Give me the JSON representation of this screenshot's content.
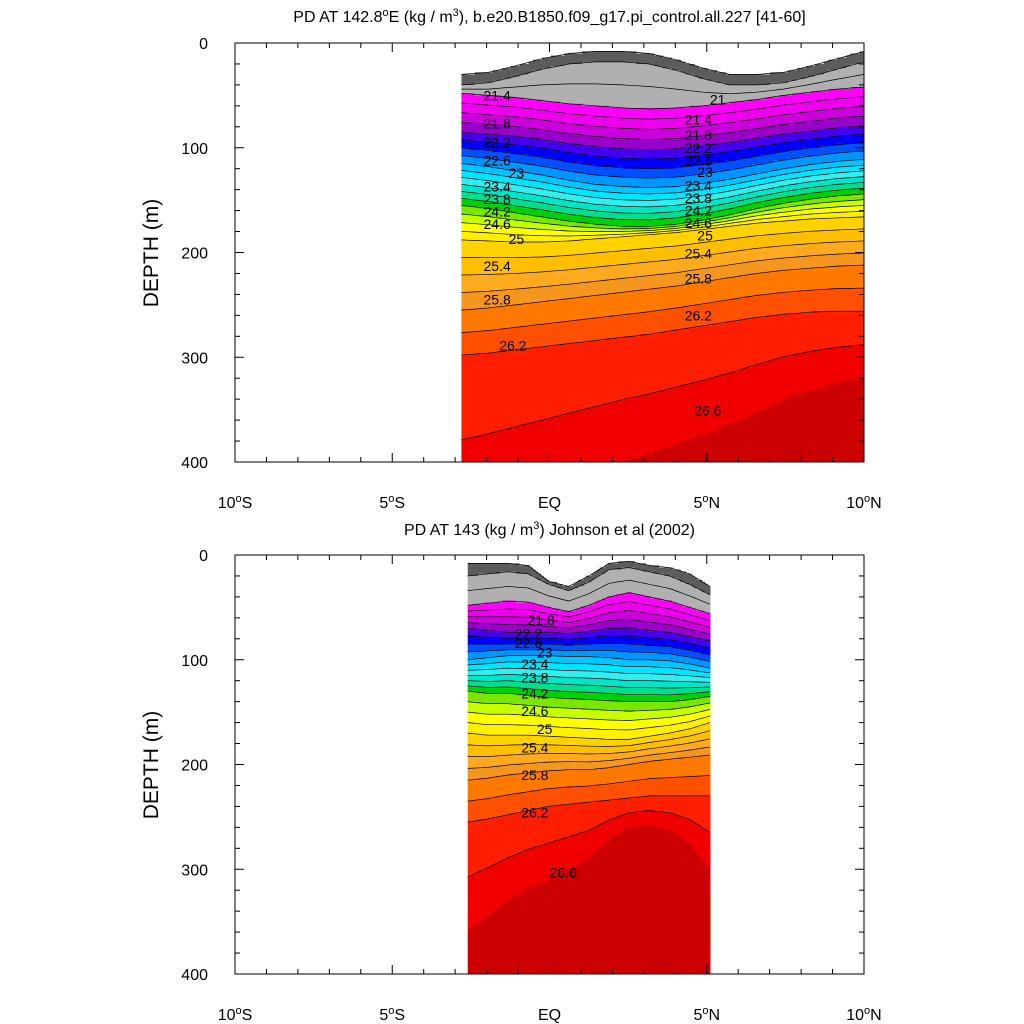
{
  "chart_data": [
    {
      "type": "contour",
      "title_prefix": "PD AT 142.8",
      "title_mid": "E (kg / m",
      "title_suffix": "), b.e20.B1850.f09_g17.pi_control.all.227 [41-60]",
      "degree_sup": "o",
      "cube_sup": "3",
      "ylabel": "DEPTH (m)",
      "xlabel": "",
      "xlim": [
        -10,
        10
      ],
      "ylim": [
        400,
        0
      ],
      "x_ticks": [
        {
          "value": -10,
          "num": "10",
          "hemi": "S"
        },
        {
          "value": -5,
          "num": "5",
          "hemi": "S"
        },
        {
          "value": 0,
          "num": "EQ",
          "hemi": ""
        },
        {
          "value": 5,
          "num": "5",
          "hemi": "N"
        },
        {
          "value": 10,
          "num": "10",
          "hemi": "N"
        }
      ],
      "y_ticks": [
        0,
        100,
        200,
        300,
        400
      ],
      "data_extent_x": [
        -2.8,
        10
      ],
      "contour_interval": 0.2,
      "top_depth": [
        30,
        28,
        22,
        15,
        10,
        8,
        8,
        10,
        16,
        24,
        30,
        30,
        28,
        22,
        15,
        8
      ],
      "iso_depth": [
        {
          "level": 21.0,
          "depth": [
            40,
            38,
            32,
            25,
            20,
            18,
            18,
            20,
            26,
            34,
            40,
            40,
            38,
            32,
            25,
            18
          ]
        },
        {
          "level": 21.4,
          "depth": [
            48,
            50,
            52,
            55,
            58,
            60,
            62,
            63,
            62,
            60,
            57,
            54,
            50,
            47,
            44,
            42
          ]
        },
        {
          "level": 22.2,
          "depth": [
            85,
            87,
            89,
            92,
            96,
            99,
            101,
            102,
            101,
            98,
            95,
            91,
            87,
            84,
            81,
            79
          ]
        },
        {
          "level": 23.0,
          "depth": [
            115,
            118,
            122,
            126,
            131,
            135,
            137,
            138,
            137,
            134,
            130,
            125,
            120,
            116,
            113,
            111
          ]
        },
        {
          "level": 24.2,
          "depth": [
            155,
            158,
            162,
            166,
            170,
            173,
            175,
            175,
            173,
            169,
            164,
            158,
            153,
            149,
            146,
            144
          ]
        },
        {
          "level": 25.0,
          "depth": [
            188,
            189,
            190,
            190,
            189,
            187,
            185,
            183,
            181,
            178,
            175,
            172,
            170,
            168,
            167,
            166
          ]
        },
        {
          "level": 25.8,
          "depth": [
            255,
            253,
            250,
            247,
            244,
            241,
            238,
            235,
            232,
            228,
            224,
            220,
            217,
            215,
            213,
            212
          ]
        },
        {
          "level": 26.2,
          "depth": [
            298,
            296,
            293,
            290,
            287,
            284,
            281,
            278,
            274,
            270,
            266,
            262,
            259,
            257,
            256,
            256
          ]
        },
        {
          "level": 26.6,
          "depth": [
            460,
            450,
            440,
            430,
            420,
            410,
            400,
            392,
            383,
            374,
            364,
            352,
            340,
            332,
            325,
            320
          ]
        }
      ],
      "labels": [
        {
          "text": "21",
          "x": 5.1,
          "y": 54
        },
        {
          "text": "21.4",
          "x": -2.1,
          "y": 50
        },
        {
          "text": "21.4",
          "x": 4.3,
          "y": 73
        },
        {
          "text": "21.8",
          "x": -2.1,
          "y": 77
        },
        {
          "text": "21.8",
          "x": 4.3,
          "y": 88
        },
        {
          "text": "22.2",
          "x": -2.1,
          "y": 95
        },
        {
          "text": "22.2",
          "x": 4.3,
          "y": 100
        },
        {
          "text": "22.6",
          "x": -2.1,
          "y": 112
        },
        {
          "text": "22.6",
          "x": 4.3,
          "y": 112
        },
        {
          "text": "23",
          "x": -1.3,
          "y": 124
        },
        {
          "text": "23",
          "x": 4.7,
          "y": 123
        },
        {
          "text": "23.4",
          "x": -2.1,
          "y": 137
        },
        {
          "text": "23.4",
          "x": 4.3,
          "y": 136
        },
        {
          "text": "23.8",
          "x": -2.1,
          "y": 149
        },
        {
          "text": "23.8",
          "x": 4.3,
          "y": 148
        },
        {
          "text": "24.2",
          "x": -2.1,
          "y": 161
        },
        {
          "text": "24.2",
          "x": 4.3,
          "y": 160
        },
        {
          "text": "24.6",
          "x": -2.1,
          "y": 173
        },
        {
          "text": "24.6",
          "x": 4.3,
          "y": 172
        },
        {
          "text": "25",
          "x": -1.3,
          "y": 187
        },
        {
          "text": "25",
          "x": 4.7,
          "y": 184
        },
        {
          "text": "25.4",
          "x": -2.1,
          "y": 213
        },
        {
          "text": "25.4",
          "x": 4.3,
          "y": 201
        },
        {
          "text": "25.8",
          "x": -2.1,
          "y": 245
        },
        {
          "text": "25.8",
          "x": 4.3,
          "y": 225
        },
        {
          "text": "26.2",
          "x": -1.6,
          "y": 289
        },
        {
          "text": "26.2",
          "x": 4.3,
          "y": 260
        },
        {
          "text": "26.6",
          "x": 4.6,
          "y": 351
        }
      ]
    },
    {
      "type": "contour",
      "title_prefix": "PD AT 143 (kg / m",
      "title_mid": "",
      "title_suffix": ") Johnson et al (2002)",
      "degree_sup": "",
      "cube_sup": "3",
      "ylabel": "DEPTH (m)",
      "xlabel": "",
      "xlim": [
        -10,
        10
      ],
      "ylim": [
        400,
        0
      ],
      "x_ticks": [
        {
          "value": -10,
          "num": "10",
          "hemi": "S"
        },
        {
          "value": -5,
          "num": "5",
          "hemi": "S"
        },
        {
          "value": 0,
          "num": "EQ",
          "hemi": ""
        },
        {
          "value": 5,
          "num": "5",
          "hemi": "N"
        },
        {
          "value": 10,
          "num": "10",
          "hemi": "N"
        }
      ],
      "y_ticks": [
        0,
        100,
        200,
        300,
        400
      ],
      "data_extent_x": [
        -2.6,
        5.1
      ],
      "data_top_depth": 6,
      "contour_interval": 0.2,
      "top_depth": [
        8,
        8,
        8,
        10,
        25,
        30,
        20,
        8,
        6,
        10,
        12,
        18,
        30
      ],
      "iso_depth": [
        {
          "level": 21.0,
          "depth": [
            20,
            18,
            16,
            18,
            28,
            34,
            26,
            14,
            12,
            16,
            20,
            28,
            38
          ]
        },
        {
          "level": 21.4,
          "depth": [
            48,
            46,
            44,
            45,
            50,
            54,
            48,
            40,
            36,
            40,
            44,
            50,
            56
          ]
        },
        {
          "level": 22.2,
          "depth": [
            70,
            72,
            74,
            74,
            74,
            75,
            73,
            70,
            70,
            72,
            74,
            78,
            82
          ]
        },
        {
          "level": 23.0,
          "depth": [
            100,
            98,
            96,
            96,
            96,
            97,
            97,
            98,
            100,
            100,
            101,
            104,
            108
          ]
        },
        {
          "level": 24.2,
          "depth": [
            130,
            132,
            132,
            134,
            136,
            137,
            138,
            139,
            140,
            140,
            140,
            138,
            135
          ]
        },
        {
          "level": 25.0,
          "depth": [
            170,
            172,
            172,
            172,
            173,
            174,
            175,
            176,
            176,
            173,
            170,
            166,
            160
          ]
        },
        {
          "level": 25.8,
          "depth": [
            215,
            213,
            210,
            208,
            206,
            205,
            205,
            203,
            200,
            197,
            195,
            193,
            191
          ]
        },
        {
          "level": 26.2,
          "depth": [
            255,
            252,
            248,
            244,
            240,
            238,
            236,
            234,
            232,
            230,
            230,
            230,
            230
          ]
        },
        {
          "level": 26.6,
          "depth": [
            360,
            345,
            330,
            318,
            310,
            300,
            290,
            272,
            260,
            258,
            262,
            275,
            300
          ]
        }
      ],
      "labels": [
        {
          "text": "21.8",
          "x": -0.7,
          "y": 62
        },
        {
          "text": "22.2",
          "x": -1.1,
          "y": 75
        },
        {
          "text": "22.6",
          "x": -1.1,
          "y": 84
        },
        {
          "text": "23",
          "x": -0.4,
          "y": 93
        },
        {
          "text": "23.4",
          "x": -0.9,
          "y": 104
        },
        {
          "text": "23.8",
          "x": -0.9,
          "y": 117
        },
        {
          "text": "24.2",
          "x": -0.9,
          "y": 132
        },
        {
          "text": "24.6",
          "x": -0.9,
          "y": 149
        },
        {
          "text": "25",
          "x": -0.4,
          "y": 166
        },
        {
          "text": "25.4",
          "x": -0.9,
          "y": 184
        },
        {
          "text": "25.8",
          "x": -0.9,
          "y": 210
        },
        {
          "text": "26.2",
          "x": -0.9,
          "y": 246
        },
        {
          "text": "26.6",
          "x": 0.0,
          "y": 303
        }
      ]
    }
  ],
  "colormap": [
    {
      "max": 21.0,
      "color": "#5c5c5c"
    },
    {
      "max": 21.4,
      "color": "#b0b0b0"
    },
    {
      "max": 21.6,
      "color": "#ff00ff"
    },
    {
      "max": 21.8,
      "color": "#ee00ee"
    },
    {
      "max": 22.0,
      "color": "#cc00dd"
    },
    {
      "max": 22.2,
      "color": "#9a00cc"
    },
    {
      "max": 22.4,
      "color": "#4400ee"
    },
    {
      "max": 22.6,
      "color": "#0000ff"
    },
    {
      "max": 22.8,
      "color": "#0050ff"
    },
    {
      "max": 23.0,
      "color": "#0096ff"
    },
    {
      "max": 23.2,
      "color": "#00c8ff"
    },
    {
      "max": 23.4,
      "color": "#00e6ff"
    },
    {
      "max": 23.6,
      "color": "#33eeee"
    },
    {
      "max": 23.8,
      "color": "#00e6c8"
    },
    {
      "max": 24.0,
      "color": "#00e08c"
    },
    {
      "max": 24.2,
      "color": "#00d200"
    },
    {
      "max": 24.4,
      "color": "#7be600"
    },
    {
      "max": 24.6,
      "color": "#c8ff00"
    },
    {
      "max": 24.8,
      "color": "#ffff00"
    },
    {
      "max": 25.0,
      "color": "#fff000"
    },
    {
      "max": 25.2,
      "color": "#ffd200"
    },
    {
      "max": 25.4,
      "color": "#ffbe00"
    },
    {
      "max": 25.6,
      "color": "#ffaa1e"
    },
    {
      "max": 25.8,
      "color": "#f5961e"
    },
    {
      "max": 26.0,
      "color": "#ff7800"
    },
    {
      "max": 26.2,
      "color": "#ff5000"
    },
    {
      "max": 26.4,
      "color": "#ff1e00"
    },
    {
      "max": 26.6,
      "color": "#f00000"
    },
    {
      "max": 99.0,
      "color": "#cc0000"
    }
  ]
}
